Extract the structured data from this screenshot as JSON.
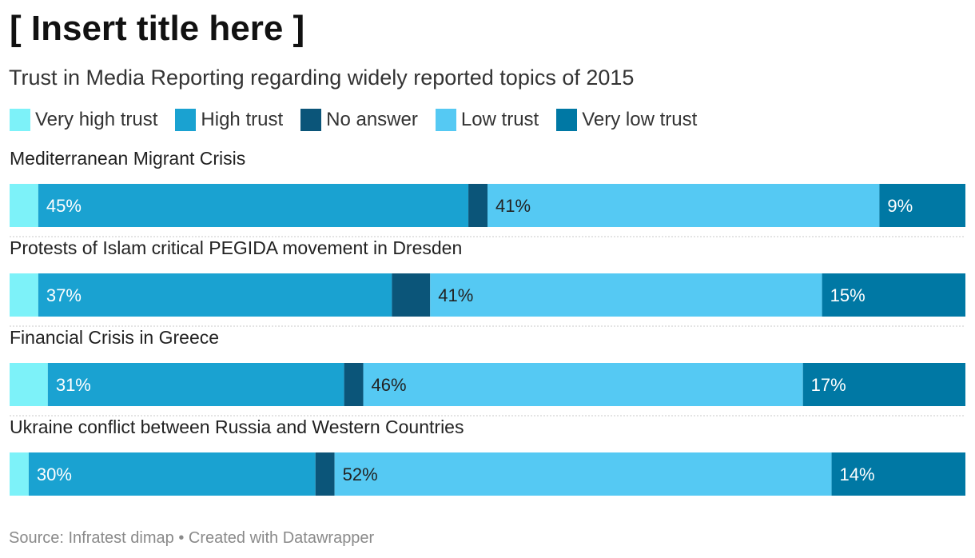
{
  "header": {
    "title": "[ Insert title here ]",
    "subtitle": "Trust in Media Reporting regarding widely reported topics of 2015"
  },
  "legend": [
    {
      "label": "Very high trust",
      "color": "#7df2f9"
    },
    {
      "label": "High trust",
      "color": "#1aa2d1"
    },
    {
      "label": "No answer",
      "color": "#0b5579"
    },
    {
      "label": "Low trust",
      "color": "#55c9f3"
    },
    {
      "label": "Very low trust",
      "color": "#0078a4"
    }
  ],
  "chart_data": {
    "type": "bar",
    "orientation": "horizontal",
    "stacked": true,
    "normalized_to": 100,
    "title": "[ Insert title here ]",
    "subtitle": "Trust in Media Reporting regarding widely reported topics of 2015",
    "categories": [
      "Mediterranean Migrant Crisis",
      "Protests of Islam critical PEGIDA movement in Dresden",
      "Financial Crisis in Greece",
      "Ukraine conflict between Russia and Western Countries"
    ],
    "series": [
      {
        "name": "Very high trust",
        "color": "#7df2f9",
        "values": [
          3,
          3,
          4,
          2
        ],
        "label_color": "#222222"
      },
      {
        "name": "High trust",
        "color": "#1aa2d1",
        "values": [
          45,
          37,
          31,
          30
        ],
        "label_color": "#ffffff"
      },
      {
        "name": "No answer",
        "color": "#0b5579",
        "values": [
          2,
          4,
          2,
          2
        ],
        "label_color": "#ffffff"
      },
      {
        "name": "Low trust",
        "color": "#55c9f3",
        "values": [
          41,
          41,
          46,
          52
        ],
        "label_color": "#222222"
      },
      {
        "name": "Very low trust",
        "color": "#0078a4",
        "values": [
          9,
          15,
          17,
          14
        ],
        "label_color": "#ffffff"
      }
    ],
    "xlim": [
      0,
      100
    ],
    "grid": false,
    "legend_position": "top-left"
  },
  "footer": {
    "source": "Source: Infratest dimap • Created with Datawrapper"
  }
}
